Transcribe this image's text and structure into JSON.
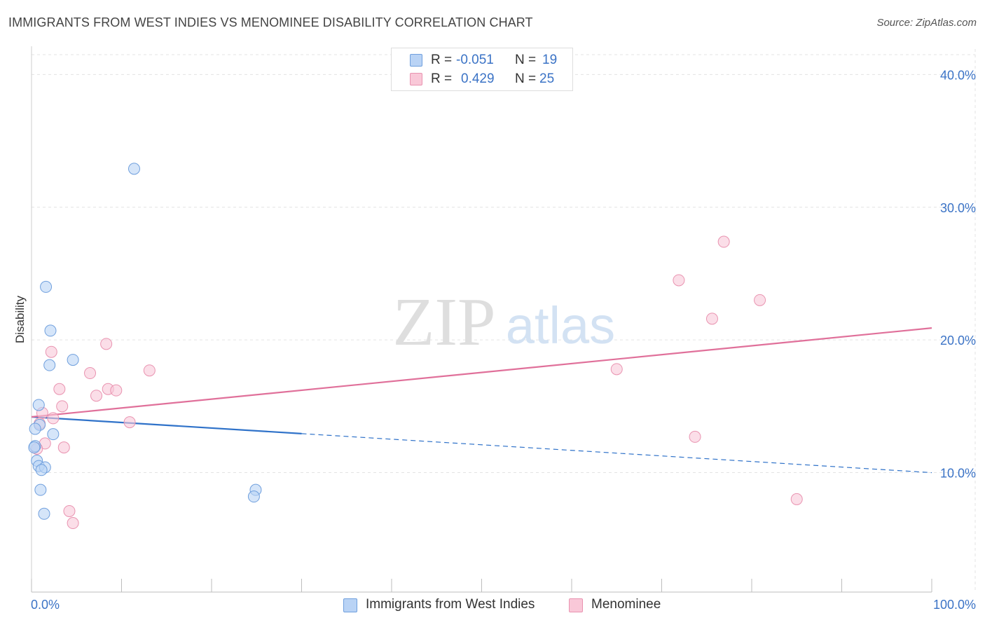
{
  "title": "IMMIGRANTS FROM WEST INDIES VS MENOMINEE DISABILITY CORRELATION CHART",
  "source": "Source: ZipAtlas.com",
  "watermark": {
    "zip": "ZIP",
    "atlas": "atlas"
  },
  "legend": {
    "rows": [
      {
        "r_label": "R =",
        "r_value": "-0.051",
        "n_label": "N =",
        "n_value": "19"
      },
      {
        "r_label": "R =",
        "r_value": "0.429",
        "n_label": "N =",
        "n_value": "25"
      }
    ]
  },
  "colors": {
    "blue_fill": "#b9d3f5",
    "blue_stroke": "#6f9fdd",
    "blue_line": "#2f72c9",
    "pink_fill": "#f9c8d8",
    "pink_stroke": "#e993b0",
    "pink_line": "#e0709a",
    "axis_label": "#3b73c6",
    "grid": "#e3e3e3"
  },
  "chart_data": {
    "type": "scatter",
    "title": "IMMIGRANTS FROM WEST INDIES VS MENOMINEE DISABILITY CORRELATION CHART",
    "xlabel": "",
    "ylabel": "Disability",
    "xlim": [
      0,
      100
    ],
    "ylim": [
      1.0,
      41.5
    ],
    "x_tick_labels": [
      "0.0%",
      "100.0%"
    ],
    "y_ticks": [
      10,
      20,
      30,
      40
    ],
    "y_tick_labels": [
      "10.0%",
      "20.0%",
      "30.0%",
      "40.0%"
    ],
    "series": [
      {
        "name": "Immigrants from West Indies",
        "color": "blue",
        "r": -0.051,
        "n": 19,
        "points": [
          [
            11.4,
            32.9
          ],
          [
            1.6,
            24.0
          ],
          [
            2.1,
            20.7
          ],
          [
            4.6,
            18.5
          ],
          [
            2.0,
            18.1
          ],
          [
            0.8,
            15.1
          ],
          [
            0.9,
            13.6
          ],
          [
            0.4,
            13.3
          ],
          [
            2.4,
            12.9
          ],
          [
            0.4,
            12.0
          ],
          [
            0.3,
            11.9
          ],
          [
            0.6,
            10.9
          ],
          [
            0.8,
            10.5
          ],
          [
            1.5,
            10.4
          ],
          [
            1.1,
            10.2
          ],
          [
            24.9,
            8.7
          ],
          [
            24.7,
            8.2
          ],
          [
            1.0,
            8.7
          ],
          [
            1.4,
            6.9
          ]
        ],
        "trend": {
          "x": [
            0,
            100
          ],
          "y": [
            14.2,
            10.0
          ],
          "solid_until_x": 30
        }
      },
      {
        "name": "Menominee",
        "color": "pink",
        "r": 0.429,
        "n": 25,
        "points": [
          [
            76.9,
            27.4
          ],
          [
            71.9,
            24.5
          ],
          [
            80.9,
            23.0
          ],
          [
            75.6,
            21.6
          ],
          [
            8.3,
            19.7
          ],
          [
            2.2,
            19.1
          ],
          [
            65.0,
            17.8
          ],
          [
            13.1,
            17.7
          ],
          [
            6.5,
            17.5
          ],
          [
            3.1,
            16.3
          ],
          [
            8.5,
            16.3
          ],
          [
            9.4,
            16.2
          ],
          [
            7.2,
            15.8
          ],
          [
            3.4,
            15.0
          ],
          [
            1.2,
            14.5
          ],
          [
            2.4,
            14.1
          ],
          [
            10.9,
            13.8
          ],
          [
            0.9,
            13.7
          ],
          [
            1.5,
            12.2
          ],
          [
            3.6,
            11.9
          ],
          [
            0.6,
            11.8
          ],
          [
            73.7,
            12.7
          ],
          [
            85.0,
            8.0
          ],
          [
            4.2,
            7.1
          ],
          [
            4.6,
            6.2
          ]
        ],
        "trend": {
          "x": [
            0,
            100
          ],
          "y": [
            14.2,
            20.9
          ]
        }
      }
    ]
  },
  "bottom_legend": [
    "Immigrants from West Indies",
    "Menominee"
  ]
}
